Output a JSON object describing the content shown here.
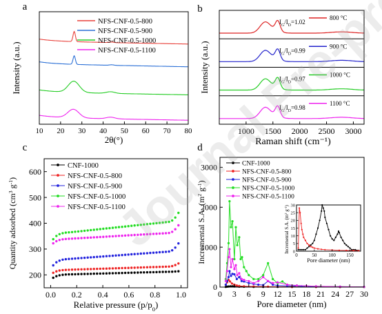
{
  "watermark": "Journal Pre-proof",
  "chart_data": [
    {
      "panel": "a",
      "type": "line",
      "xlabel": "2θ(°)",
      "ylabel": "Intensity (a.u.)",
      "xlim": [
        10,
        80
      ],
      "xticks": [
        10,
        20,
        30,
        40,
        50,
        60,
        70,
        80
      ],
      "series": [
        {
          "name": "NFS-CNF-0.5-800",
          "color": "#e8403a",
          "offset": 3.0,
          "shape": "sharp",
          "peak": 26.4,
          "amp": 0.38,
          "width": 0.55
        },
        {
          "name": "NFS-CNF-0.5-900",
          "color": "#2a6fd6",
          "offset": 2.15,
          "shape": "sharp",
          "peak": 26.4,
          "amp": 0.32,
          "width": 0.55
        },
        {
          "name": "NFS-CNF-0.5-1000",
          "color": "#22cc22",
          "offset": 1.1,
          "shape": "broad",
          "peak": 26.2,
          "amp": 0.42,
          "width": 2.6
        },
        {
          "name": "NFS-CNF-0.5-1100",
          "color": "#ee22ee",
          "offset": 0.15,
          "shape": "broad",
          "peak": 26.0,
          "amp": 0.32,
          "width": 2.6
        }
      ]
    },
    {
      "panel": "b",
      "type": "line",
      "xlabel": "Raman shift (cm⁻¹)",
      "ylabel": "Intensity (a.u.)",
      "xlim": [
        500,
        3200
      ],
      "xticks": [
        1000,
        1500,
        2000,
        2500,
        3000
      ],
      "series": [
        {
          "name": "800 °C",
          "color": "#dd2222",
          "ratio_label": "I",
          "ratio_sub1": "G",
          "ratio_mid": "/I",
          "ratio_sub2": "D",
          "ratio_value": "=1.02"
        },
        {
          "name": "900 °C",
          "color": "#2222cc",
          "ratio_label": "I",
          "ratio_sub1": "G",
          "ratio_mid": "/I",
          "ratio_sub2": "D",
          "ratio_value": "=0.99"
        },
        {
          "name": "1000 °C",
          "color": "#22cc22",
          "ratio_label": "I",
          "ratio_sub1": "G",
          "ratio_mid": "/I",
          "ratio_sub2": "D",
          "ratio_value": "=0.97"
        },
        {
          "name": "1100 °C",
          "color": "#ee22ee",
          "ratio_label": "I",
          "ratio_sub1": "G",
          "ratio_mid": "/I",
          "ratio_sub2": "D",
          "ratio_value": "=0.98"
        }
      ]
    },
    {
      "panel": "c",
      "type": "scatter",
      "xlabel": "Relative pressure (p/p0)",
      "xlabel_main": "Relative pressure (p/p",
      "xlabel_sub": "0",
      "xlabel_end": ")",
      "ylabel": "Quantity adsorbed (cm3 g-1)",
      "ylabel_main": "Quantity adsorbed (cm",
      "ylabel_sup1": "3",
      "ylabel_mid": " g",
      "ylabel_sup2": "-1",
      "ylabel_end": ")",
      "xlim": [
        -0.05,
        1.05
      ],
      "ylim": [
        150,
        650
      ],
      "xticks": [
        0.0,
        0.2,
        0.4,
        0.6,
        0.8,
        1.0
      ],
      "yticks": [
        200,
        300,
        400,
        500,
        600
      ],
      "series": [
        {
          "name": "CNF-1000",
          "color": "#000000",
          "y_start": 180,
          "y_knee": 202,
          "y_plateau": 212,
          "y_end": 214
        },
        {
          "name": "NFS-CNF-0.5-800",
          "color": "#ee2222",
          "y_start": 200,
          "y_knee": 220,
          "y_plateau": 232,
          "y_end": 244
        },
        {
          "name": "NFS-CNF-0.5-900",
          "color": "#2222dd",
          "y_start": 220,
          "y_knee": 262,
          "y_plateau": 290,
          "y_end": 322
        },
        {
          "name": "NFS-CNF-0.5-1000",
          "color": "#22dd22",
          "y_start": 320,
          "y_knee": 365,
          "y_plateau": 405,
          "y_end": 440
        },
        {
          "name": "NFS-CNF-0.5-1100",
          "color": "#ee22ee",
          "y_start": 310,
          "y_knee": 340,
          "y_plateau": 362,
          "y_end": 392
        }
      ]
    },
    {
      "panel": "d",
      "type": "line",
      "xlabel": "Pore diameter (nm)",
      "ylabel": "Incremental S.A. (m2 g-1)",
      "ylabel_main": "Incremental S.A. (m",
      "ylabel_sup1": "2",
      "ylabel_mid": " g",
      "ylabel_sup2": "-1",
      "ylabel_end": ")",
      "xlim": [
        0,
        30
      ],
      "ylim": [
        0,
        3250
      ],
      "xticks": [
        0,
        3,
        6,
        9,
        12,
        15,
        18,
        21,
        24,
        27,
        30
      ],
      "yticks": [
        0,
        1000,
        2000,
        3000
      ],
      "series": [
        {
          "name": "CNF-1000",
          "color": "#000000",
          "x": [
            1.2,
            1.5,
            1.8,
            2.2,
            2.6,
            3.0,
            4.0,
            5.0,
            7.0,
            9.0,
            12.0,
            15.0,
            20.0,
            25.0,
            30.0
          ],
          "values": [
            5,
            10,
            15,
            20,
            20,
            15,
            10,
            8,
            6,
            6,
            5,
            4,
            3,
            2,
            1
          ]
        },
        {
          "name": "NFS-CNF-0.5-800",
          "color": "#ee2222",
          "x": [
            1.2,
            1.5,
            1.8,
            2.1,
            2.5,
            3.0,
            3.5,
            4.0,
            5.0,
            7.0,
            10.0,
            15.0,
            20.0,
            25.0,
            30.0
          ],
          "values": [
            60,
            120,
            180,
            140,
            90,
            60,
            40,
            30,
            20,
            15,
            10,
            6,
            4,
            3,
            2
          ]
        },
        {
          "name": "NFS-CNF-0.5-900",
          "color": "#2222dd",
          "x": [
            1.2,
            1.5,
            1.8,
            2.0,
            2.3,
            2.6,
            3.0,
            3.5,
            4.0,
            4.5,
            5.0,
            6.0,
            7.0,
            8.0,
            9.0,
            10.0,
            11.0,
            12.0,
            14.0,
            17.0,
            20.0,
            25.0,
            30.0
          ],
          "values": [
            60,
            150,
            250,
            400,
            280,
            330,
            320,
            200,
            250,
            150,
            140,
            100,
            80,
            60,
            50,
            150,
            60,
            40,
            30,
            20,
            15,
            10,
            5
          ]
        },
        {
          "name": "NFS-CNF-0.5-1000",
          "color": "#22dd22",
          "x": [
            1.2,
            1.5,
            1.8,
            2.0,
            2.3,
            2.6,
            3.0,
            3.3,
            3.6,
            4.0,
            4.3,
            4.6,
            5.0,
            5.5,
            6.0,
            7.0,
            8.0,
            9.0,
            10.0,
            11.0,
            12.0,
            13.0,
            14.0,
            16.0,
            18.0,
            20.0,
            25.0,
            30.0
          ],
          "values": [
            200,
            600,
            1100,
            2150,
            1500,
            1650,
            700,
            1500,
            1050,
            1250,
            700,
            750,
            500,
            400,
            300,
            200,
            200,
            300,
            600,
            200,
            100,
            140,
            60,
            40,
            30,
            20,
            10,
            5
          ]
        },
        {
          "name": "NFS-CNF-0.5-1100",
          "color": "#ee22ee",
          "x": [
            1.2,
            1.5,
            1.8,
            2.0,
            2.3,
            2.6,
            3.0,
            3.3,
            3.6,
            4.0,
            4.5,
            5.0,
            6.0,
            7.0,
            8.0,
            9.0,
            10.0,
            11.0,
            12.0,
            14.0,
            16.0,
            18.0,
            20.0,
            25.0,
            30.0
          ],
          "values": [
            150,
            400,
            750,
            950,
            500,
            700,
            450,
            550,
            300,
            350,
            200,
            180,
            150,
            100,
            150,
            250,
            150,
            100,
            120,
            60,
            40,
            30,
            20,
            10,
            5
          ]
        }
      ],
      "inset": {
        "type": "line",
        "xlabel": "Pore diameter (nm)",
        "ylabel": "Incremental S.A. (m2 g-1)",
        "ylabel_main": "Incremental S.A. (m",
        "ylabel_sup1": "2",
        "ylabel_mid": " g",
        "ylabel_sup2": "-1",
        "ylabel_end": ")",
        "xlim": [
          0,
          180
        ],
        "ylim": [
          0,
          30
        ],
        "xticks": [
          0,
          50,
          100,
          150
        ],
        "yticks": [
          0,
          5,
          10,
          15,
          20,
          25,
          30
        ],
        "series": [
          {
            "name": "CNF-1000",
            "color": "#000000",
            "x": [
              5,
              10,
              15,
              20,
              25,
              30,
              35,
              40,
              45,
              50,
              55,
              60,
              65,
              70,
              72,
              75,
              78,
              80,
              85,
              90,
              95,
              100,
              105,
              110,
              115,
              118,
              120,
              125,
              130,
              135,
              140,
              145,
              150,
              155,
              160,
              165,
              170,
              175
            ],
            "values": [
              1,
              1,
              1,
              1,
              1,
              2,
              3,
              4,
              5,
              7,
              11,
              15,
              20,
              26,
              30,
              28,
              26,
              22,
              18,
              14,
              10,
              8,
              7,
              9,
              11,
              13,
              12,
              9,
              7,
              5,
              4,
              3,
              2,
              1,
              1,
              1,
              0.5,
              0.5
            ]
          },
          {
            "name": "NFS-CNF-0.5-800",
            "color": "#ee2222",
            "x": [
              5,
              8,
              10,
              13,
              15,
              18,
              20,
              25,
              30,
              35,
              40,
              45,
              50,
              60,
              70,
              80,
              100,
              120,
              140,
              160,
              175
            ],
            "values": [
              2,
              28,
              25,
              18,
              14,
              11,
              9,
              7,
              5,
              4,
              3,
              2.5,
              2,
              1.5,
              1.2,
              1,
              0.8,
              0.6,
              0.5,
              0.4,
              0.3
            ]
          }
        ]
      }
    }
  ],
  "panels": {
    "a": {
      "letter": "a"
    },
    "b": {
      "letter": "b"
    },
    "c": {
      "letter": "c"
    },
    "d": {
      "letter": "d"
    }
  }
}
